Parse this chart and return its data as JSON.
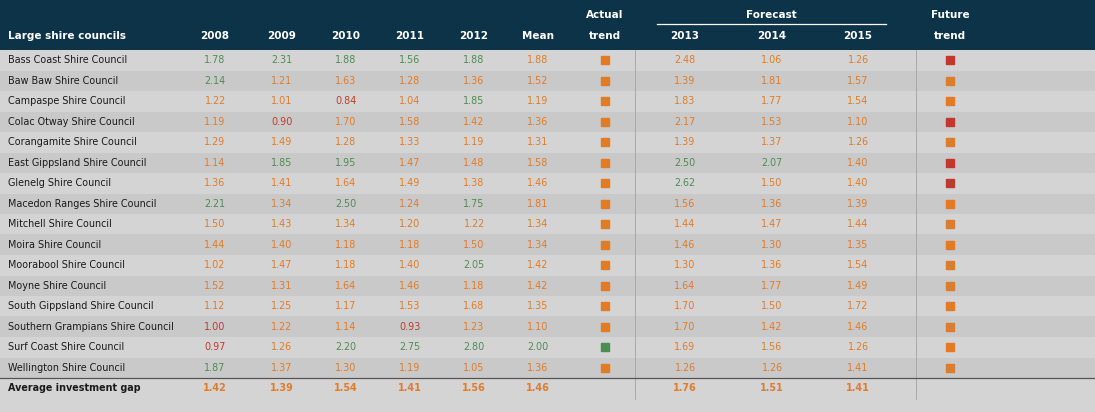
{
  "header_bg": "#0d3349",
  "body_bg": "#d4d4d4",
  "rows": [
    {
      "name": "Bass Coast Shire Council",
      "vals": [
        1.78,
        2.31,
        1.88,
        1.56,
        1.88,
        1.88,
        2.48,
        1.06,
        1.26
      ],
      "val_colors": [
        "green",
        "green",
        "green",
        "green",
        "green",
        "orange",
        "orange",
        "orange",
        "orange"
      ],
      "actual_sq": "orange",
      "future_sq": "red"
    },
    {
      "name": "Baw Baw Shire Council",
      "vals": [
        2.14,
        1.21,
        1.63,
        1.28,
        1.36,
        1.52,
        1.39,
        1.81,
        1.57
      ],
      "val_colors": [
        "green",
        "orange",
        "orange",
        "orange",
        "orange",
        "orange",
        "orange",
        "orange",
        "orange"
      ],
      "actual_sq": "orange",
      "future_sq": "orange"
    },
    {
      "name": "Campaspe Shire Council",
      "vals": [
        1.22,
        1.01,
        0.84,
        1.04,
        1.85,
        1.19,
        1.83,
        1.77,
        1.54
      ],
      "val_colors": [
        "orange",
        "orange",
        "red",
        "orange",
        "green",
        "orange",
        "orange",
        "orange",
        "orange"
      ],
      "actual_sq": "orange",
      "future_sq": "orange"
    },
    {
      "name": "Colac Otway Shire Council",
      "vals": [
        1.19,
        0.9,
        1.7,
        1.58,
        1.42,
        1.36,
        2.17,
        1.53,
        1.1
      ],
      "val_colors": [
        "orange",
        "red",
        "orange",
        "orange",
        "orange",
        "orange",
        "orange",
        "orange",
        "orange"
      ],
      "actual_sq": "orange",
      "future_sq": "red"
    },
    {
      "name": "Corangamite Shire Council",
      "vals": [
        1.29,
        1.49,
        1.28,
        1.33,
        1.19,
        1.31,
        1.39,
        1.37,
        1.26
      ],
      "val_colors": [
        "orange",
        "orange",
        "orange",
        "orange",
        "orange",
        "orange",
        "orange",
        "orange",
        "orange"
      ],
      "actual_sq": "orange",
      "future_sq": "orange"
    },
    {
      "name": "East Gippsland Shire Council",
      "vals": [
        1.14,
        1.85,
        1.95,
        1.47,
        1.48,
        1.58,
        2.5,
        2.07,
        1.4
      ],
      "val_colors": [
        "orange",
        "green",
        "green",
        "orange",
        "orange",
        "orange",
        "green",
        "green",
        "orange"
      ],
      "actual_sq": "orange",
      "future_sq": "red"
    },
    {
      "name": "Glenelg Shire Council",
      "vals": [
        1.36,
        1.41,
        1.64,
        1.49,
        1.38,
        1.46,
        2.62,
        1.5,
        1.4
      ],
      "val_colors": [
        "orange",
        "orange",
        "orange",
        "orange",
        "orange",
        "orange",
        "green",
        "orange",
        "orange"
      ],
      "actual_sq": "orange",
      "future_sq": "red"
    },
    {
      "name": "Macedon Ranges Shire Council",
      "vals": [
        2.21,
        1.34,
        2.5,
        1.24,
        1.75,
        1.81,
        1.56,
        1.36,
        1.39
      ],
      "val_colors": [
        "green",
        "orange",
        "green",
        "orange",
        "green",
        "orange",
        "orange",
        "orange",
        "orange"
      ],
      "actual_sq": "orange",
      "future_sq": "orange"
    },
    {
      "name": "Mitchell Shire Council",
      "vals": [
        1.5,
        1.43,
        1.34,
        1.2,
        1.22,
        1.34,
        1.44,
        1.47,
        1.44
      ],
      "val_colors": [
        "orange",
        "orange",
        "orange",
        "orange",
        "orange",
        "orange",
        "orange",
        "orange",
        "orange"
      ],
      "actual_sq": "orange",
      "future_sq": "orange"
    },
    {
      "name": "Moira Shire Council",
      "vals": [
        1.44,
        1.4,
        1.18,
        1.18,
        1.5,
        1.34,
        1.46,
        1.3,
        1.35
      ],
      "val_colors": [
        "orange",
        "orange",
        "orange",
        "orange",
        "orange",
        "orange",
        "orange",
        "orange",
        "orange"
      ],
      "actual_sq": "orange",
      "future_sq": "orange"
    },
    {
      "name": "Moorabool Shire Council",
      "vals": [
        1.02,
        1.47,
        1.18,
        1.4,
        2.05,
        1.42,
        1.3,
        1.36,
        1.54
      ],
      "val_colors": [
        "orange",
        "orange",
        "orange",
        "orange",
        "green",
        "orange",
        "orange",
        "orange",
        "orange"
      ],
      "actual_sq": "orange",
      "future_sq": "orange"
    },
    {
      "name": "Moyne Shire Council",
      "vals": [
        1.52,
        1.31,
        1.64,
        1.46,
        1.18,
        1.42,
        1.64,
        1.77,
        1.49
      ],
      "val_colors": [
        "orange",
        "orange",
        "orange",
        "orange",
        "orange",
        "orange",
        "orange",
        "orange",
        "orange"
      ],
      "actual_sq": "orange",
      "future_sq": "orange"
    },
    {
      "name": "South Gippsland Shire Council",
      "vals": [
        1.12,
        1.25,
        1.17,
        1.53,
        1.68,
        1.35,
        1.7,
        1.5,
        1.72
      ],
      "val_colors": [
        "orange",
        "orange",
        "orange",
        "orange",
        "orange",
        "orange",
        "orange",
        "orange",
        "orange"
      ],
      "actual_sq": "orange",
      "future_sq": "orange"
    },
    {
      "name": "Southern Grampians Shire Council",
      "vals": [
        1.0,
        1.22,
        1.14,
        0.93,
        1.23,
        1.1,
        1.7,
        1.42,
        1.46
      ],
      "val_colors": [
        "red",
        "orange",
        "orange",
        "red",
        "orange",
        "orange",
        "orange",
        "orange",
        "orange"
      ],
      "actual_sq": "orange",
      "future_sq": "orange"
    },
    {
      "name": "Surf Coast Shire Council",
      "vals": [
        0.97,
        1.26,
        2.2,
        2.75,
        2.8,
        2.0,
        1.69,
        1.56,
        1.26
      ],
      "val_colors": [
        "red",
        "orange",
        "green",
        "green",
        "green",
        "green",
        "orange",
        "orange",
        "orange"
      ],
      "actual_sq": "green",
      "future_sq": "orange"
    },
    {
      "name": "Wellington Shire Council",
      "vals": [
        1.87,
        1.37,
        1.3,
        1.19,
        1.05,
        1.36,
        1.26,
        1.26,
        1.41
      ],
      "val_colors": [
        "green",
        "orange",
        "orange",
        "orange",
        "orange",
        "orange",
        "orange",
        "orange",
        "orange"
      ],
      "actual_sq": "orange",
      "future_sq": "orange"
    }
  ],
  "avg_row": {
    "name": "Average investment gap",
    "vals": [
      1.42,
      1.39,
      1.54,
      1.41,
      1.56,
      1.46,
      1.76,
      1.51,
      1.41
    ],
    "val_colors": [
      "orange",
      "orange",
      "orange",
      "orange",
      "orange",
      "orange",
      "orange",
      "orange",
      "orange"
    ]
  },
  "color_map": {
    "green": "#4e8c52",
    "orange": "#e07b28",
    "red": "#c0392b"
  }
}
